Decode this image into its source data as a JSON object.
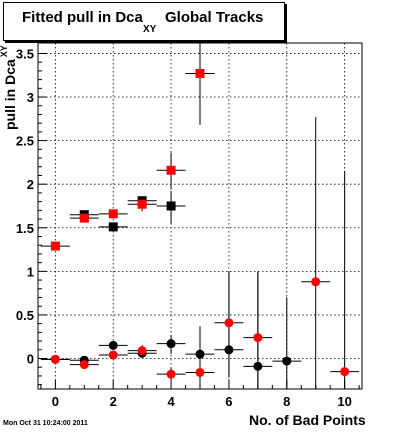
{
  "title": {
    "main": "Fitted pull in Dca",
    "sub": "XY",
    "tail": "Global Tracks"
  },
  "footer": {
    "timestamp": "Mon Oct 31 10:24:00 2011"
  },
  "colors": {
    "series_a": "#000000",
    "series_b": "#ff0000",
    "grid": "#000000",
    "frame": "#000000"
  },
  "chart_data": {
    "type": "scatter",
    "title": "Fitted pull in Dca XY Global Tracks",
    "xlabel": "No. of Bad Points",
    "ylabel": "pull in Dca",
    "ylabel_sub": "XY",
    "xlim": [
      -0.6,
      10.6
    ],
    "ylim": [
      -0.35,
      3.62
    ],
    "xticks": [
      0,
      2,
      4,
      6,
      8,
      10
    ],
    "yticks": [
      0,
      0.5,
      1,
      1.5,
      2,
      2.5,
      3,
      3.5
    ],
    "xtick_labels": [
      "0",
      "2",
      "4",
      "6",
      "8",
      "10"
    ],
    "ytick_labels": [
      "0",
      "0.5",
      "1",
      "1.5",
      "2",
      "2.5",
      "3",
      "3.5"
    ],
    "grid": true,
    "series": [
      {
        "marker": "square",
        "color": "#000000",
        "points": [
          {
            "x": 1,
            "y": 1.65,
            "xerr": 0.5,
            "ylo": 1.65,
            "yhi": 1.65
          },
          {
            "x": 2,
            "y": 1.51,
            "xerr": 0.5,
            "ylo": 1.51,
            "yhi": 1.51
          },
          {
            "x": 3,
            "y": 1.81,
            "xerr": 0.5,
            "ylo": 1.76,
            "yhi": 1.86
          },
          {
            "x": 4,
            "y": 1.75,
            "xerr": 0.5,
            "ylo": 1.55,
            "yhi": 1.92
          }
        ]
      },
      {
        "marker": "square",
        "color": "#ff0000",
        "points": [
          {
            "x": 0,
            "y": 1.29,
            "xerr": 0.5,
            "ylo": 1.29,
            "yhi": 1.29
          },
          {
            "x": 1,
            "y": 1.61,
            "xerr": 0.5,
            "ylo": 1.61,
            "yhi": 1.61
          },
          {
            "x": 2,
            "y": 1.66,
            "xerr": 0.5,
            "ylo": 1.66,
            "yhi": 1.66
          },
          {
            "x": 3,
            "y": 1.77,
            "xerr": 0.5,
            "ylo": 1.69,
            "yhi": 1.84
          },
          {
            "x": 4,
            "y": 2.16,
            "xerr": 0.5,
            "ylo": 1.94,
            "yhi": 2.36
          },
          {
            "x": 5,
            "y": 3.27,
            "xerr": 0.5,
            "ylo": 2.68,
            "yhi": 3.62
          }
        ]
      },
      {
        "marker": "circle",
        "color": "#000000",
        "points": [
          {
            "x": 0,
            "y": -0.01,
            "xerr": 0.5,
            "ylo": -0.01,
            "yhi": -0.01
          },
          {
            "x": 1,
            "y": -0.02,
            "xerr": 0.5,
            "ylo": -0.02,
            "yhi": -0.02
          },
          {
            "x": 2,
            "y": 0.15,
            "xerr": 0.5,
            "ylo": 0.1,
            "yhi": 0.2
          },
          {
            "x": 3,
            "y": 0.06,
            "xerr": 0.5,
            "ylo": 0.01,
            "yhi": 0.12
          },
          {
            "x": 4,
            "y": 0.17,
            "xerr": 0.5,
            "ylo": 0.05,
            "yhi": 0.27
          },
          {
            "x": 5,
            "y": 0.05,
            "xerr": 0.5,
            "ylo": -0.16,
            "yhi": 0.37
          },
          {
            "x": 6,
            "y": 0.1,
            "xerr": 0.5,
            "ylo": -0.2,
            "yhi": 1.0
          },
          {
            "x": 7,
            "y": -0.09,
            "xerr": 0.5,
            "ylo": -0.35,
            "yhi": 0.99
          },
          {
            "x": 8,
            "y": -0.03,
            "xerr": 0.5,
            "ylo": -0.35,
            "yhi": 0.7
          }
        ]
      },
      {
        "marker": "circle",
        "color": "#ff0000",
        "points": [
          {
            "x": 0,
            "y": -0.01,
            "xerr": 0.5,
            "ylo": -0.01,
            "yhi": -0.01
          },
          {
            "x": 1,
            "y": -0.07,
            "xerr": 0.5,
            "ylo": -0.07,
            "yhi": -0.07
          },
          {
            "x": 2,
            "y": 0.04,
            "xerr": 0.5,
            "ylo": 0.04,
            "yhi": 0.04
          },
          {
            "x": 3,
            "y": 0.09,
            "xerr": 0.5,
            "ylo": 0.03,
            "yhi": 0.15
          },
          {
            "x": 4,
            "y": -0.18,
            "xerr": 0.5,
            "ylo": -0.25,
            "yhi": -0.11
          },
          {
            "x": 5,
            "y": -0.16,
            "xerr": 0.5,
            "ylo": -0.33,
            "yhi": 0.0
          },
          {
            "x": 6,
            "y": 0.41,
            "xerr": 0.5,
            "ylo": -0.22,
            "yhi": 1.0
          },
          {
            "x": 7,
            "y": 0.24,
            "xerr": 0.5,
            "ylo": -0.35,
            "yhi": 1.0
          },
          {
            "x": 9,
            "y": 0.88,
            "xerr": 0.5,
            "ylo": -0.35,
            "yhi": 2.77
          },
          {
            "x": 10,
            "y": -0.15,
            "xerr": 0.5,
            "ylo": -0.35,
            "yhi": 2.15
          }
        ]
      }
    ]
  }
}
